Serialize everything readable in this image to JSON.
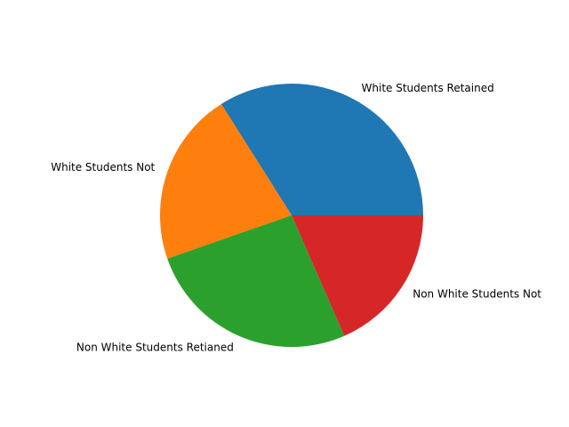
{
  "chart_data": {
    "type": "pie",
    "title": "",
    "start_angle_deg": 0,
    "direction": "counterclockwise",
    "slices": [
      {
        "label": "White Students Retained",
        "value": 35,
        "color": "#1f77b4"
      },
      {
        "label": "White Students Not",
        "value": 22,
        "color": "#ff7f0e"
      },
      {
        "label": "Non White Students Retianed",
        "value": 27,
        "color": "#2ca02c"
      },
      {
        "label": "Non White Students Not",
        "value": 19,
        "color": "#d62728"
      }
    ]
  }
}
